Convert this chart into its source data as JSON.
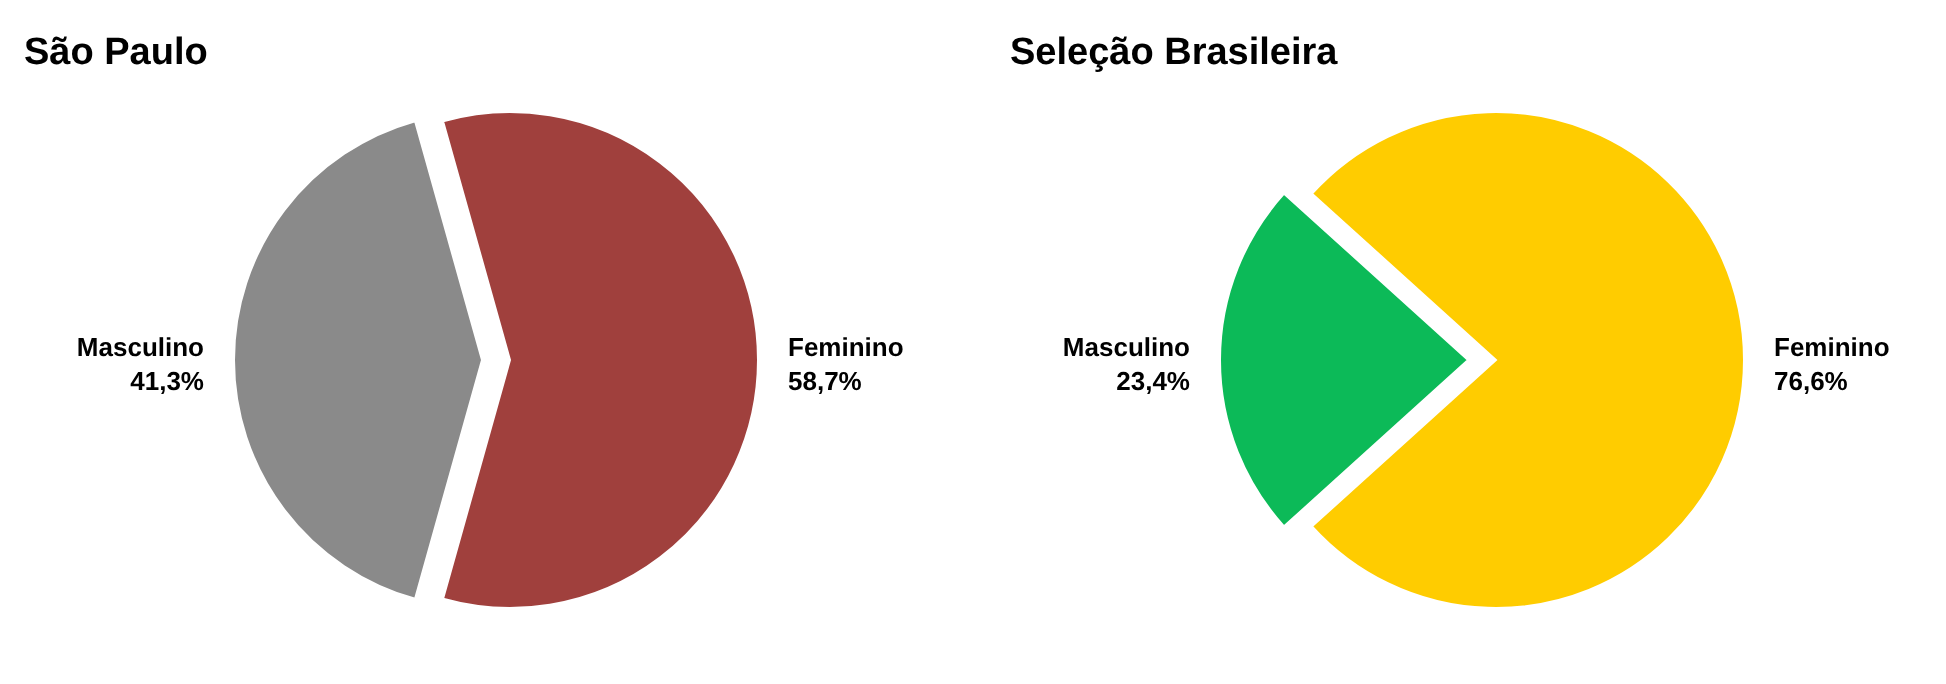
{
  "chart_data": [
    {
      "type": "pie",
      "title": "São Paulo",
      "categories": [
        "Feminino",
        "Masculino"
      ],
      "values": [
        58.7,
        41.3
      ],
      "colors": [
        "#a0403d",
        "#8a8a8a"
      ],
      "value_labels": [
        "58,7%",
        "41,3%"
      ]
    },
    {
      "type": "pie",
      "title": "Seleção Brasileira",
      "categories": [
        "Feminino",
        "Masculino"
      ],
      "values": [
        76.6,
        23.4
      ],
      "colors": [
        "#ffcc00",
        "#0cba58"
      ],
      "value_labels": [
        "76,6%",
        "23,4%"
      ]
    }
  ]
}
